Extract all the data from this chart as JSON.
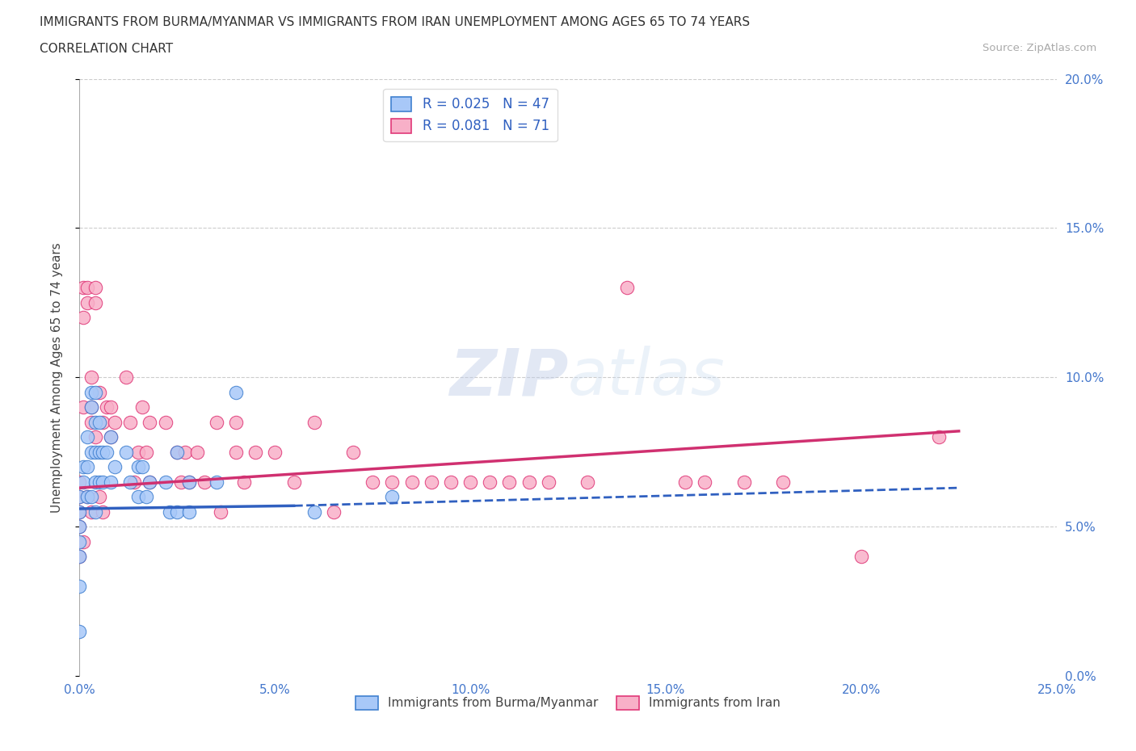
{
  "title_line1": "IMMIGRANTS FROM BURMA/MYANMAR VS IMMIGRANTS FROM IRAN UNEMPLOYMENT AMONG AGES 65 TO 74 YEARS",
  "title_line2": "CORRELATION CHART",
  "source_text": "Source: ZipAtlas.com",
  "ylabel": "Unemployment Among Ages 65 to 74 years",
  "watermark_part1": "ZIP",
  "watermark_part2": "atlas",
  "legend_label1": "R = 0.025   N = 47",
  "legend_label2": "R = 0.081   N = 71",
  "legend_bottom1": "Immigrants from Burma/Myanmar",
  "legend_bottom2": "Immigrants from Iran",
  "color_burma_fill": "#a8c8f8",
  "color_burma_edge": "#4080d0",
  "color_iran_fill": "#f8b0c8",
  "color_iran_edge": "#e03878",
  "color_burma_line": "#3060c0",
  "color_iran_line": "#d03070",
  "tick_color": "#4477cc",
  "xlim": [
    0.0,
    0.25
  ],
  "ylim": [
    0.0,
    0.2
  ],
  "xticks": [
    0.0,
    0.05,
    0.1,
    0.15,
    0.2,
    0.25
  ],
  "yticks": [
    0.0,
    0.05,
    0.1,
    0.15,
    0.2
  ],
  "xtick_labels": [
    "0.0%",
    "5.0%",
    "10.0%",
    "15.0%",
    "20.0%",
    "25.0%"
  ],
  "ytick_labels": [
    "0.0%",
    "5.0%",
    "10.0%",
    "15.0%",
    "20.0%"
  ],
  "burma_x": [
    0.0,
    0.0,
    0.0,
    0.0,
    0.0,
    0.0,
    0.0,
    0.001,
    0.001,
    0.002,
    0.002,
    0.002,
    0.003,
    0.003,
    0.003,
    0.003,
    0.004,
    0.004,
    0.004,
    0.004,
    0.004,
    0.005,
    0.005,
    0.005,
    0.006,
    0.006,
    0.007,
    0.008,
    0.008,
    0.009,
    0.012,
    0.013,
    0.015,
    0.015,
    0.016,
    0.017,
    0.018,
    0.022,
    0.023,
    0.025,
    0.025,
    0.028,
    0.028,
    0.035,
    0.04,
    0.06,
    0.08
  ],
  "burma_y": [
    0.06,
    0.055,
    0.05,
    0.045,
    0.04,
    0.03,
    0.015,
    0.07,
    0.065,
    0.08,
    0.07,
    0.06,
    0.095,
    0.09,
    0.075,
    0.06,
    0.095,
    0.085,
    0.075,
    0.065,
    0.055,
    0.085,
    0.075,
    0.065,
    0.075,
    0.065,
    0.075,
    0.08,
    0.065,
    0.07,
    0.075,
    0.065,
    0.07,
    0.06,
    0.07,
    0.06,
    0.065,
    0.065,
    0.055,
    0.075,
    0.055,
    0.065,
    0.055,
    0.065,
    0.095,
    0.055,
    0.06
  ],
  "iran_x": [
    0.0,
    0.0,
    0.0,
    0.0,
    0.0,
    0.001,
    0.001,
    0.001,
    0.001,
    0.002,
    0.002,
    0.002,
    0.003,
    0.003,
    0.003,
    0.003,
    0.004,
    0.004,
    0.004,
    0.005,
    0.005,
    0.006,
    0.006,
    0.007,
    0.008,
    0.008,
    0.009,
    0.012,
    0.013,
    0.014,
    0.015,
    0.016,
    0.017,
    0.018,
    0.018,
    0.022,
    0.025,
    0.026,
    0.027,
    0.028,
    0.03,
    0.032,
    0.035,
    0.036,
    0.04,
    0.04,
    0.042,
    0.045,
    0.05,
    0.055,
    0.06,
    0.065,
    0.07,
    0.075,
    0.08,
    0.085,
    0.09,
    0.095,
    0.1,
    0.105,
    0.11,
    0.115,
    0.12,
    0.13,
    0.14,
    0.155,
    0.16,
    0.17,
    0.18,
    0.2,
    0.22
  ],
  "iran_y": [
    0.065,
    0.06,
    0.055,
    0.05,
    0.04,
    0.13,
    0.12,
    0.09,
    0.045,
    0.13,
    0.125,
    0.06,
    0.1,
    0.09,
    0.085,
    0.055,
    0.13,
    0.125,
    0.08,
    0.095,
    0.06,
    0.085,
    0.055,
    0.09,
    0.09,
    0.08,
    0.085,
    0.1,
    0.085,
    0.065,
    0.075,
    0.09,
    0.075,
    0.085,
    0.065,
    0.085,
    0.075,
    0.065,
    0.075,
    0.065,
    0.075,
    0.065,
    0.085,
    0.055,
    0.085,
    0.075,
    0.065,
    0.075,
    0.075,
    0.065,
    0.085,
    0.055,
    0.075,
    0.065,
    0.065,
    0.065,
    0.065,
    0.065,
    0.065,
    0.065,
    0.065,
    0.065,
    0.065,
    0.065,
    0.13,
    0.065,
    0.065,
    0.065,
    0.065,
    0.04,
    0.08
  ],
  "burma_line_x0": 0.0,
  "burma_line_x_solid_end": 0.055,
  "burma_line_x_dashed_end": 0.225,
  "burma_line_y0": 0.056,
  "burma_line_y_solid_end": 0.057,
  "burma_line_y_dashed_end": 0.063,
  "iran_line_x0": 0.0,
  "iran_line_x1": 0.225,
  "iran_line_y0": 0.063,
  "iran_line_y1": 0.082
}
